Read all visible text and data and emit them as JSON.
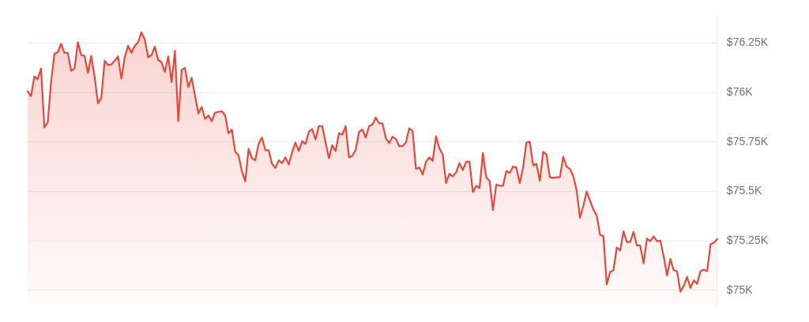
{
  "chart_data": {
    "type": "area",
    "categories": [
      null,
      null,
      null,
      null,
      null,
      null,
      null,
      null,
      null,
      null,
      null,
      null,
      null,
      null,
      null,
      null,
      null,
      null,
      null,
      null,
      null,
      null,
      null,
      null,
      null,
      null,
      null,
      null,
      null,
      null,
      null,
      null,
      null,
      null,
      null,
      null,
      null,
      null,
      null,
      null,
      null,
      null,
      null,
      null,
      null,
      null,
      null,
      null,
      null,
      null,
      null,
      null,
      null,
      null,
      null,
      null,
      null,
      null,
      null,
      null,
      null,
      null,
      null,
      null,
      null,
      null,
      null,
      null,
      null,
      null,
      null,
      null,
      null,
      null,
      null,
      null,
      null,
      null,
      null,
      null,
      null,
      null,
      null,
      null,
      null,
      null,
      null,
      null,
      null,
      null,
      null,
      null,
      null,
      null,
      null,
      null,
      null,
      null,
      null,
      null,
      null,
      null,
      null,
      null,
      null,
      null,
      null,
      null,
      null,
      null,
      null,
      null,
      null,
      null,
      null,
      null,
      null,
      null,
      null,
      null,
      null,
      null,
      null,
      null,
      null,
      null,
      null,
      null,
      null,
      null,
      null,
      null,
      null,
      null,
      null,
      null,
      null,
      null,
      null,
      null,
      null,
      null,
      null,
      null,
      null,
      null,
      null,
      null,
      null,
      null,
      null,
      null,
      null,
      null,
      null,
      null,
      null,
      null,
      null,
      null,
      null,
      null,
      null,
      null,
      null,
      null,
      null,
      null,
      null,
      null,
      null,
      null,
      null,
      null,
      null,
      null,
      null,
      null,
      null,
      null,
      null,
      null,
      null,
      null,
      null,
      null,
      null,
      null,
      null,
      null,
      null,
      null,
      null,
      null,
      null,
      null,
      null,
      null,
      null,
      null,
      null,
      null,
      null,
      null,
      null,
      null,
      null
    ],
    "series": [
      {
        "color": "#e5483b",
        "values": [
          76006,
          75981,
          76081,
          76067,
          76121,
          75823,
          75848,
          76052,
          76196,
          76203,
          76246,
          76200,
          76200,
          76110,
          76121,
          76254,
          76189,
          76185,
          76099,
          76185,
          76081,
          75945,
          75973,
          76160,
          76139,
          76142,
          76160,
          76182,
          76070,
          76178,
          76236,
          76200,
          76236,
          76254,
          76304,
          76268,
          76178,
          76189,
          76232,
          76164,
          76153,
          76103,
          76182,
          76052,
          76211,
          75855,
          76114,
          76124,
          76027,
          76074,
          75984,
          75894,
          75927,
          75866,
          75884,
          75855,
          75898,
          75902,
          75905,
          75884,
          75794,
          75812,
          75700,
          75682,
          75603,
          75550,
          75715,
          75668,
          75657,
          75740,
          75772,
          75708,
          75708,
          75639,
          75618,
          75657,
          75643,
          75672,
          75636,
          75697,
          75747,
          75704,
          75754,
          75740,
          75801,
          75815,
          75762,
          75830,
          75830,
          75747,
          75668,
          75733,
          75704,
          75794,
          75787,
          75830,
          75672,
          75679,
          75711,
          75801,
          75812,
          75772,
          75830,
          75837,
          75873,
          75844,
          75844,
          75769,
          75744,
          75776,
          75765,
          75729,
          75729,
          75747,
          75819,
          75805,
          75614,
          75621,
          75585,
          75650,
          75672,
          75654,
          75779,
          75718,
          75686,
          75542,
          75589,
          75575,
          75596,
          75643,
          75607,
          75650,
          75650,
          75496,
          75528,
          75517,
          75693,
          75571,
          75553,
          75406,
          75535,
          75528,
          75528,
          75603,
          75593,
          75625,
          75621,
          75542,
          75621,
          75747,
          75751,
          75632,
          75639,
          75553,
          75700,
          75686,
          75571,
          75568,
          75571,
          75571,
          75675,
          75625,
          75614,
          75578,
          75506,
          75366,
          75427,
          75499,
          75453,
          75409,
          75377,
          75280,
          75273,
          75029,
          75093,
          75101,
          75216,
          75201,
          75298,
          75244,
          75244,
          75295,
          75226,
          75226,
          75136,
          75262,
          75248,
          75273,
          75248,
          75251,
          75172,
          75075,
          75158,
          75101,
          75097,
          74993,
          75022,
          75068,
          75011,
          75050,
          75032,
          75097,
          75104,
          75097,
          75233,
          75241,
          75259
        ]
      }
    ],
    "ylim": [
      74921,
      76386
    ],
    "yticks": [
      {
        "value": 75000,
        "label": "$75K"
      },
      {
        "value": 75250,
        "label": "$75.25K"
      },
      {
        "value": 75500,
        "label": "$75.5K"
      },
      {
        "value": 75750,
        "label": "$75.75K"
      },
      {
        "value": 76000,
        "label": "$76K"
      },
      {
        "value": 76250,
        "label": "$76.25K"
      }
    ],
    "grid": "y",
    "tick_labels": "y",
    "marker": "none",
    "line_style": "solid",
    "legend": false
  }
}
